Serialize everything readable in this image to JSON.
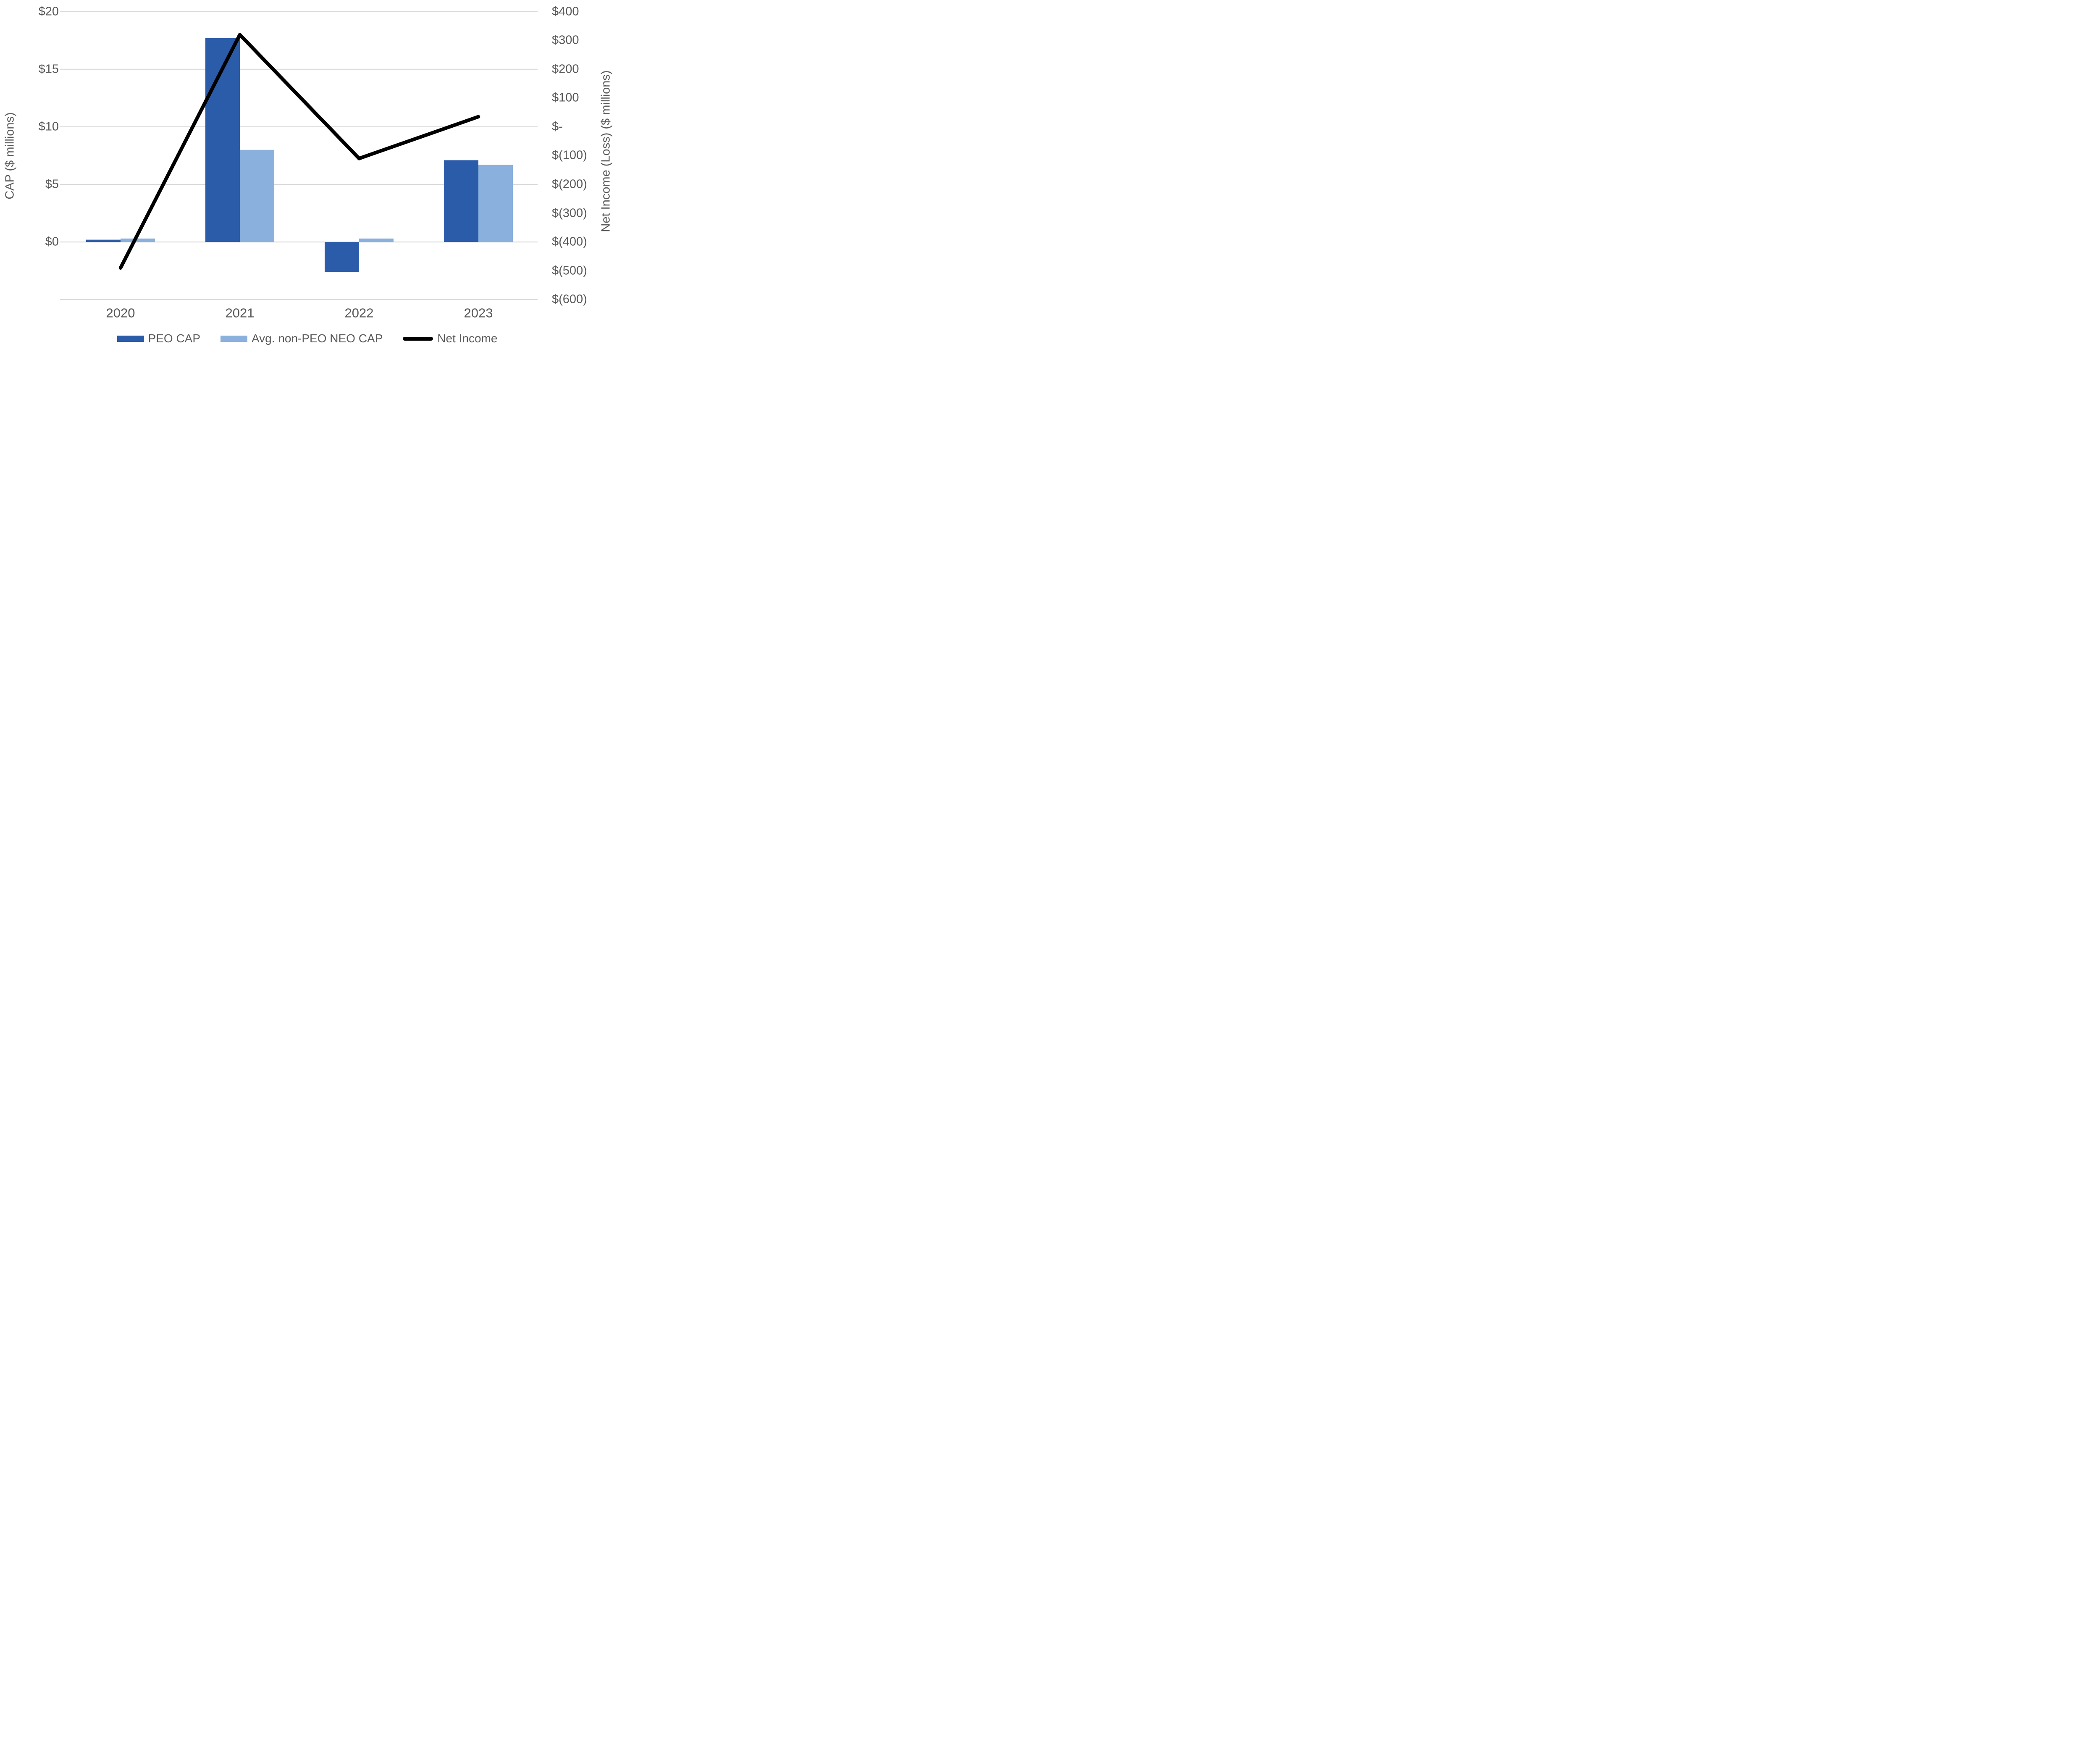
{
  "chart_data": {
    "type": "bar-line-combo",
    "title": "",
    "categories": [
      "2020",
      "2021",
      "2022",
      "2023"
    ],
    "series": [
      {
        "name": "PEO CAP",
        "type": "bar",
        "axis": "left",
        "color": "#2B5CAA",
        "values": [
          0.2,
          17.7,
          -2.6,
          7.1
        ]
      },
      {
        "name": "Avg. non-PEO NEO CAP",
        "type": "bar",
        "axis": "left",
        "color": "#8AB1DD",
        "values": [
          0.3,
          8.0,
          0.3,
          6.7
        ]
      },
      {
        "name": "Net Income",
        "type": "line",
        "axis": "right",
        "color": "#000000",
        "values": [
          -490,
          320,
          -110,
          35
        ]
      }
    ],
    "left_axis": {
      "label": "CAP ($ millions)",
      "tick_labels": [
        "$20",
        "$15",
        "$10",
        "$5",
        "$0"
      ],
      "tick_values": [
        20,
        15,
        10,
        5,
        0
      ],
      "range": [
        -5,
        20
      ],
      "gridline_step": 5
    },
    "right_axis": {
      "label": "Net Income (Loss) ($ millions)",
      "tick_labels": [
        "$400",
        "$300",
        "$200",
        "$100",
        "$-",
        "$(100)",
        "$(200)",
        "$(300)",
        "$(400)",
        "$(500)",
        "$(600)"
      ],
      "tick_values": [
        400,
        300,
        200,
        100,
        0,
        -100,
        -200,
        -300,
        -400,
        -500,
        -600
      ],
      "range": [
        -600,
        400
      ]
    },
    "grid": true,
    "legend_position": "bottom",
    "colors": {
      "gridline": "#D9D9D9",
      "text": "#595959",
      "background": "#FFFFFF"
    }
  }
}
